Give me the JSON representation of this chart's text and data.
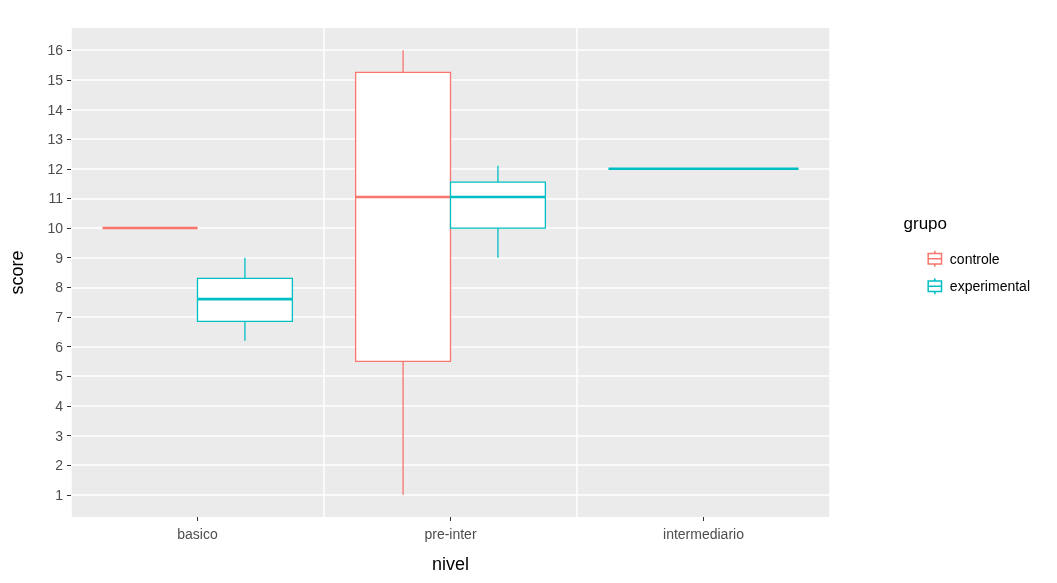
{
  "chart_data": {
    "type": "box",
    "xlabel": "nivel",
    "ylabel": "score",
    "legend_title": "grupo",
    "categories": [
      "basico",
      "pre-inter",
      "intermediario"
    ],
    "series": [
      {
        "name": "controle",
        "color": "#f8766d",
        "boxes": [
          {
            "low": 10,
            "q1": 10,
            "median": 10,
            "q3": 10,
            "high": 10
          },
          {
            "low": 1,
            "q1": 5.5,
            "median": 11.05,
            "q3": 15.25,
            "high": 16
          },
          null
        ]
      },
      {
        "name": "experimental",
        "color": "#00bfc4",
        "boxes": [
          {
            "low": 6.2,
            "q1": 6.85,
            "median": 7.6,
            "q3": 8.3,
            "high": 9
          },
          {
            "low": 9,
            "q1": 10,
            "median": 11.05,
            "q3": 11.55,
            "high": 12.1
          },
          {
            "low": 12,
            "q1": 12,
            "median": 12,
            "q3": 12,
            "high": 12
          }
        ]
      }
    ],
    "ylim": [
      0.25,
      16.75
    ],
    "yticks": [
      1,
      2,
      3,
      4,
      5,
      6,
      7,
      8,
      9,
      10,
      11,
      12,
      13,
      14,
      15,
      16
    ],
    "grid": true,
    "legend": "right"
  }
}
